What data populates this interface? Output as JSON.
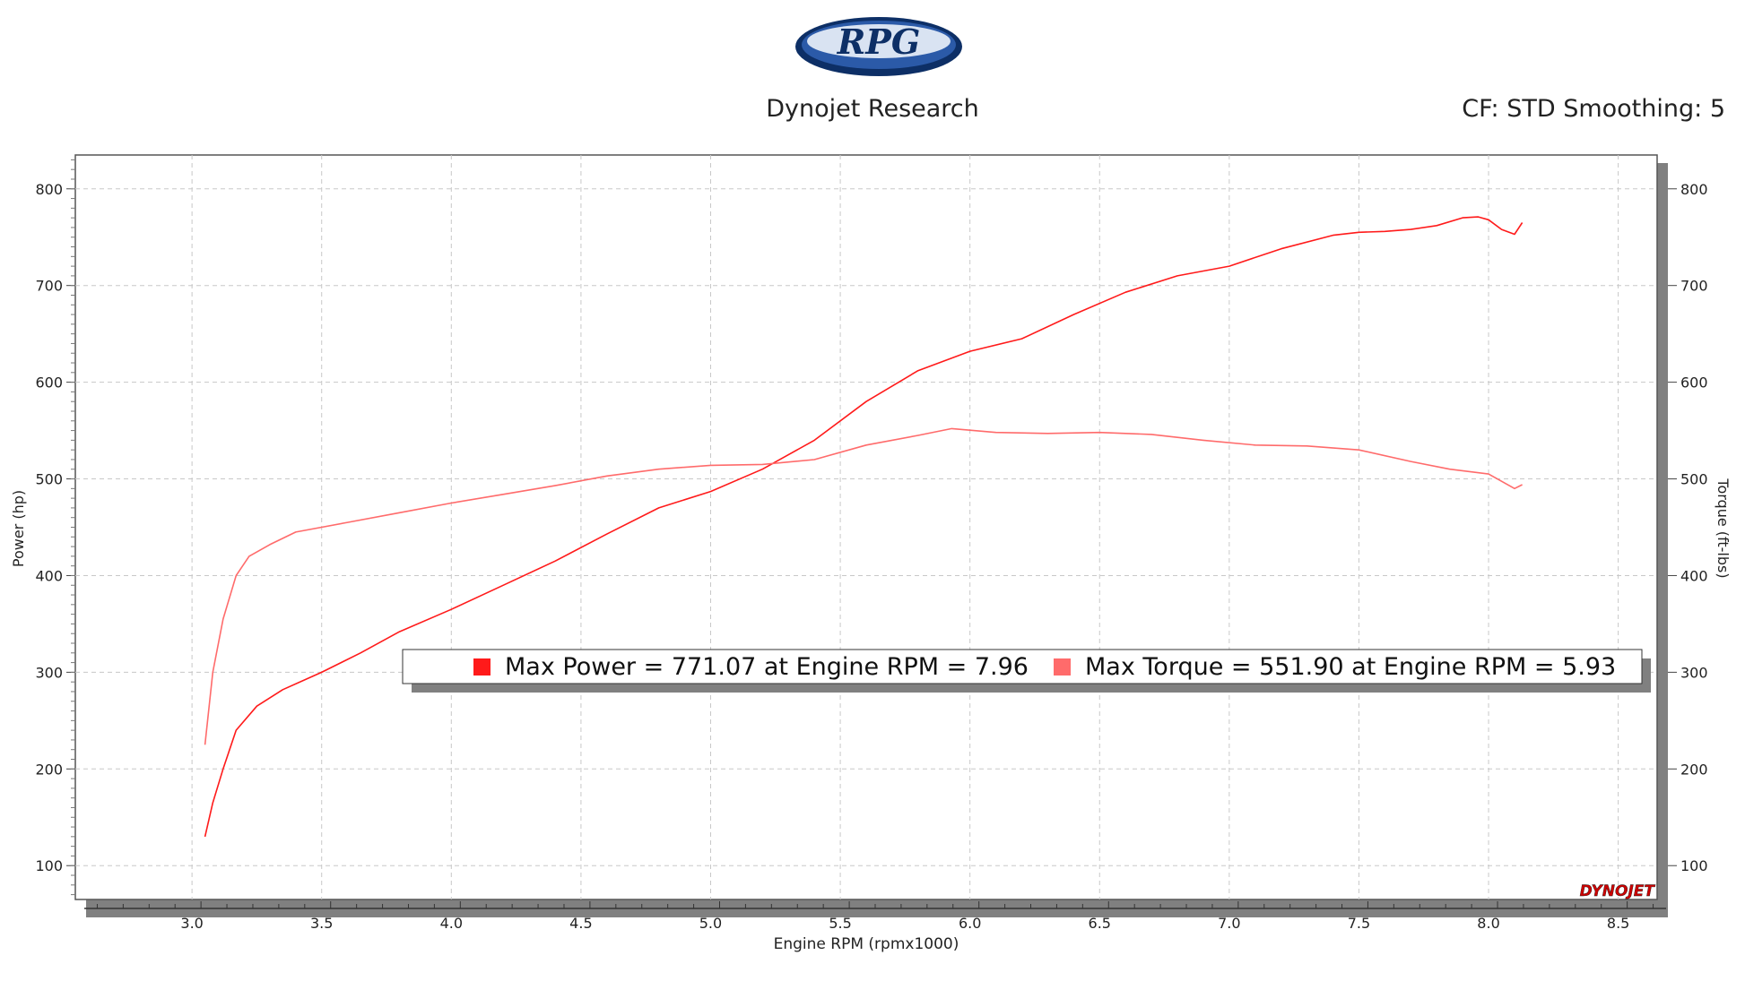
{
  "header": {
    "logo_text": "RPG",
    "title": "Dynojet Research",
    "settings": "CF: STD Smoothing: 5",
    "watermark": "DYNOJET"
  },
  "colors": {
    "power": "#ff1a1a",
    "torque": "#ff6b6b",
    "grid": "#c8c8c8",
    "shadow": "#808080"
  },
  "chart_data": {
    "type": "line",
    "xlabel": "Engine RPM (rpmx1000)",
    "ylabel": "Power (hp)",
    "y2label": "Torque (ft-lbs)",
    "xlim": [
      2.55,
      8.65
    ],
    "ylim": [
      65,
      835
    ],
    "y2lim": [
      65,
      835
    ],
    "x_ticks": [
      3.0,
      3.5,
      4.0,
      4.5,
      5.0,
      5.5,
      6.0,
      6.5,
      7.0,
      7.5,
      8.0,
      8.5
    ],
    "x_tick_labels": [
      "3.0",
      "3.5",
      "4.0",
      "4.5",
      "5.0",
      "5.5",
      "6.0",
      "6.5",
      "7.0",
      "7.5",
      "8.0",
      "8.5"
    ],
    "y_ticks": [
      100,
      200,
      300,
      400,
      500,
      600,
      700,
      800
    ],
    "y_tick_labels": [
      "100",
      "200",
      "300",
      "400",
      "500",
      "600",
      "700",
      "800"
    ],
    "y2_ticks": [
      100,
      200,
      300,
      400,
      500,
      600,
      700,
      800
    ],
    "y2_tick_labels": [
      "100",
      "200",
      "300",
      "400",
      "500",
      "600",
      "700",
      "800"
    ],
    "grid": true,
    "legend": [
      {
        "label": "Max Power = 771.07 at Engine RPM = 7.96",
        "color": "#ff1a1a"
      },
      {
        "label": "Max Torque = 551.90 at Engine RPM = 5.93",
        "color": "#ff6b6b"
      }
    ],
    "legend_position": "lower-right",
    "series": [
      {
        "axis": "left",
        "color": "#ff1a1a",
        "x": [
          3.05,
          3.08,
          3.12,
          3.17,
          3.25,
          3.35,
          3.5,
          3.65,
          3.8,
          4.0,
          4.2,
          4.4,
          4.6,
          4.8,
          5.0,
          5.2,
          5.4,
          5.6,
          5.8,
          6.0,
          6.2,
          6.4,
          6.6,
          6.8,
          7.0,
          7.2,
          7.4,
          7.5,
          7.6,
          7.7,
          7.8,
          7.9,
          7.96,
          8.0,
          8.05,
          8.1,
          8.13
        ],
        "values": [
          130,
          165,
          200,
          240,
          265,
          282,
          300,
          320,
          342,
          365,
          390,
          415,
          443,
          470,
          487,
          510,
          540,
          580,
          612,
          632,
          645,
          670,
          693,
          710,
          720,
          738,
          752,
          755,
          756,
          758,
          762,
          770,
          771,
          768,
          758,
          753,
          765
        ]
      },
      {
        "axis": "right",
        "color": "#ff6b6b",
        "x": [
          3.05,
          3.08,
          3.12,
          3.17,
          3.22,
          3.3,
          3.4,
          3.6,
          3.8,
          4.0,
          4.2,
          4.4,
          4.6,
          4.8,
          5.0,
          5.2,
          5.4,
          5.6,
          5.8,
          5.93,
          6.1,
          6.3,
          6.5,
          6.7,
          6.9,
          7.1,
          7.3,
          7.5,
          7.7,
          7.85,
          8.0,
          8.1,
          8.13
        ],
        "values": [
          225,
          300,
          355,
          400,
          420,
          432,
          445,
          455,
          465,
          475,
          484,
          493,
          503,
          510,
          514,
          515,
          520,
          535,
          545,
          552,
          548,
          547,
          548,
          546,
          540,
          535,
          534,
          530,
          518,
          510,
          505,
          490,
          494
        ]
      }
    ]
  }
}
